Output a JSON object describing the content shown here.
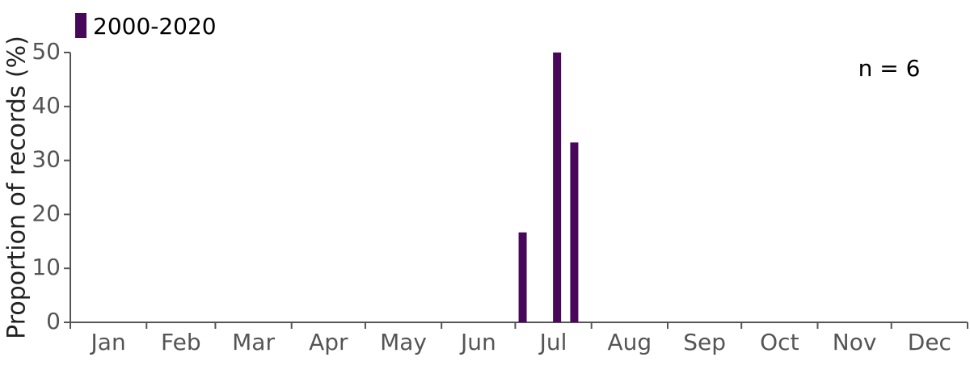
{
  "chart_data": {
    "type": "bar",
    "y_label": "Proportion of records (%)",
    "annotation": "n = 6",
    "categories": [
      "Jan",
      "Feb",
      "Mar",
      "Apr",
      "May",
      "Jun",
      "Jul",
      "Aug",
      "Sep",
      "Oct",
      "Nov",
      "Dec"
    ],
    "xlim": [
      0,
      365
    ],
    "xticks": [
      0,
      31,
      59,
      90,
      120,
      151,
      181,
      212,
      243,
      273,
      304,
      334,
      365
    ],
    "ylim": [
      0,
      50
    ],
    "yticks": [
      0,
      10,
      20,
      30,
      40,
      50
    ],
    "series": [
      {
        "name": "2000-2020",
        "color": "#48085a",
        "x": [
          184,
          198,
          205
        ],
        "values": [
          16.67,
          50,
          33.33
        ]
      }
    ]
  }
}
